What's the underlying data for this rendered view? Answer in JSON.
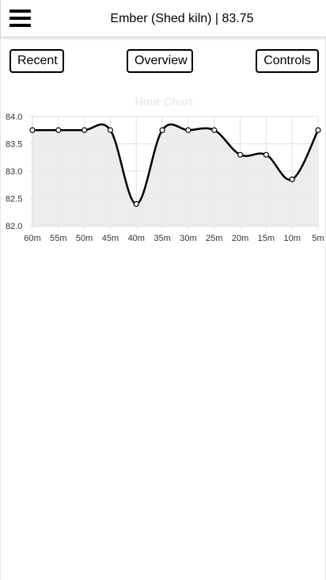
{
  "header": {
    "title": "Ember (Shed kiln) | 83.75",
    "menu_icon": "hamburger-menu-icon"
  },
  "nav": {
    "recent_label": "Recent",
    "overview_label": "Overview",
    "controls_label": "Controls"
  },
  "chart_data": {
    "type": "line",
    "title": "Hour Chart",
    "title_color": "#ebebeb",
    "categories": [
      "60m",
      "55m",
      "50m",
      "45m",
      "40m",
      "35m",
      "30m",
      "25m",
      "20m",
      "15m",
      "10m",
      "5m"
    ],
    "series": [
      {
        "values": [
          83.75,
          83.75,
          83.75,
          83.75,
          82.4,
          83.75,
          83.75,
          83.75,
          83.3,
          83.3,
          82.85,
          83.75
        ],
        "line_color": "#000000",
        "fill_color": "#ebebeb"
      }
    ],
    "yticks": [
      "84.0",
      "83.5",
      "83.0",
      "82.5",
      "82.0"
    ],
    "ylim": [
      82.0,
      84.0
    ],
    "grid": true,
    "xlabel": "",
    "ylabel": ""
  }
}
